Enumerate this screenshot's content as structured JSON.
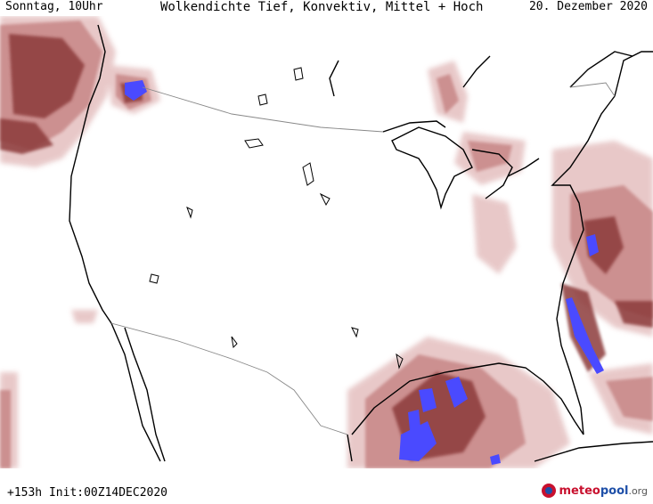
{
  "header": {
    "day_time": "Sonntag, 10Uhr",
    "title": "Wolkendichte  Tief, Konvektiv, Mittel + Hoch",
    "date": "20. Dezember 2020"
  },
  "footer": {
    "run_info": "+153h Init:00Z14DEC2020",
    "logo_part1": "meteo",
    "logo_part2": "pool",
    "logo_part3": ".org"
  },
  "colors": {
    "cloud_light": "#e7c6c6",
    "cloud_mid": "#c98a8a",
    "cloud_dark": "#8c3a3a",
    "convective": "#4a4aff",
    "coast": "#000000",
    "border": "#888888"
  },
  "icons": [
    "meteopool-logo-icon"
  ]
}
